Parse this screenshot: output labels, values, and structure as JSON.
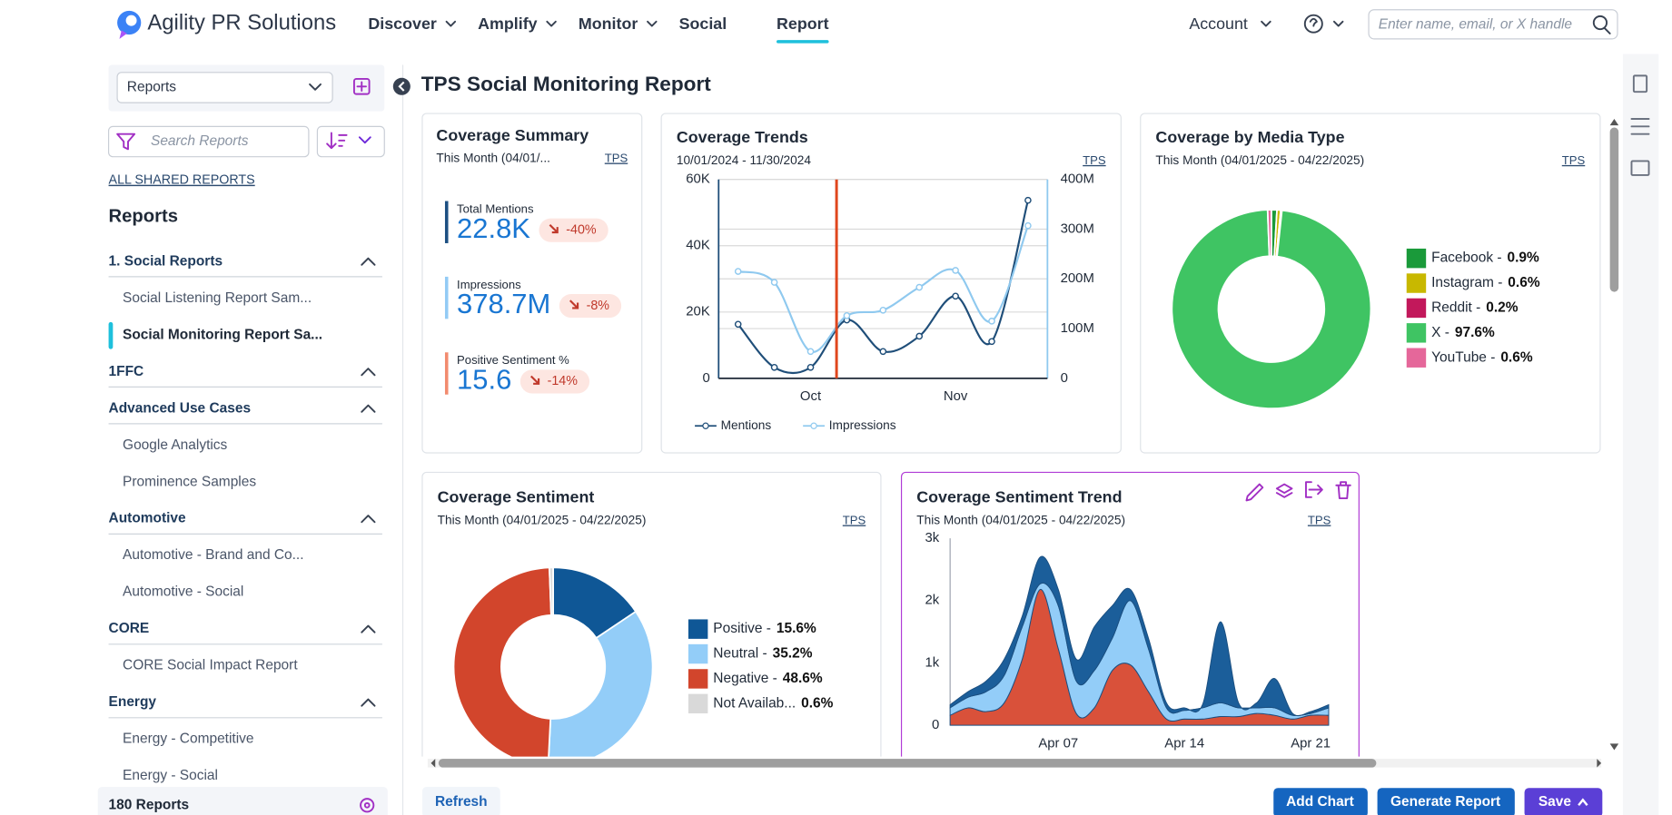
{
  "nav": {
    "brand": "Agility PR Solutions",
    "items": [
      "Discover",
      "Amplify",
      "Monitor",
      "Social",
      "Report"
    ],
    "active_item": 4,
    "account": "Account",
    "search_placeholder": "Enter name, email, or X handle"
  },
  "sidebar": {
    "dropdown": "Reports",
    "search_placeholder": "Search Reports",
    "shared_link": "ALL SHARED REPORTS",
    "heading": "Reports",
    "groups": [
      {
        "name": "1. Social Reports",
        "items": [
          "Social Listening Report Sam...",
          "Social Monitoring Report Sa..."
        ]
      },
      {
        "name": "1FFC",
        "items": []
      },
      {
        "name": "Advanced Use Cases",
        "items": [
          "Google Analytics",
          "Prominence Samples"
        ]
      },
      {
        "name": "Automotive",
        "items": [
          "Automotive - Brand and Co...",
          "Automotive - Social"
        ]
      },
      {
        "name": "CORE",
        "items": [
          "CORE Social Impact Report"
        ]
      },
      {
        "name": "Energy",
        "items": [
          "Energy - Competitive",
          "Energy - Social"
        ]
      }
    ],
    "active_item": [
      0,
      1
    ],
    "count": "180 Reports"
  },
  "report": {
    "title": "TPS Social Monitoring Report",
    "coverage_summary": {
      "title": "Coverage Summary",
      "period": "This Month (04/01/...",
      "source": "TPS",
      "metrics": [
        {
          "label": "Total Mentions",
          "value": "22.8K",
          "change": "-40%",
          "color": "#1c4f82"
        },
        {
          "label": "Impressions",
          "value": "378.7M",
          "change": "-8%",
          "color": "#93cbf5"
        },
        {
          "label": "Positive Sentiment %",
          "value": "15.6",
          "change": "-14%",
          "color": "#f28b6e"
        }
      ]
    },
    "coverage_trends": {
      "title": "Coverage Trends",
      "period": "10/01/2024 - 11/30/2024",
      "source": "TPS",
      "chart": {
        "type": "line",
        "categories": [
          null,
          null,
          "Oct",
          null,
          null,
          null,
          "Nov",
          null,
          null
        ],
        "series": [
          {
            "name": "Mentions",
            "color": "#1f4e79",
            "values": [
              16300,
              3300,
              3300,
              17600,
              8100,
              12700,
              24800,
              11100,
              53700
            ]
          },
          {
            "name": "Impressions",
            "color": "#8fc9ef",
            "axis": "y2",
            "values": [
              215000000,
              193000000,
              54000000,
              126000000,
              137000000,
              183000000,
              217000000,
              115000000,
              307000000
            ]
          }
        ],
        "ylim": [
          0,
          60000
        ],
        "yticks": [
          0,
          {
            "value": 20000,
            "label": "20K"
          },
          {
            "value": 40000,
            "label": "40K"
          },
          {
            "value": 60000,
            "label": "60K"
          }
        ],
        "y2lim": [
          0,
          400000000
        ],
        "y2ticks": [
          0,
          {
            "value": 100000000,
            "label": "100M"
          },
          {
            "value": 200000000,
            "label": "200M"
          },
          {
            "value": 300000000,
            "label": "300M"
          },
          {
            "value": 400000000,
            "label": "400M"
          }
        ],
        "grid": true
      }
    },
    "coverage_by_media_type": {
      "title": "Coverage by Media Type",
      "period": "This Month (04/01/2025 - 04/22/2025)",
      "source": "TPS",
      "chart": {
        "type": "donut",
        "categories": [
          "Facebook -",
          "Instagram -",
          "Reddit -",
          "X -",
          "YouTube -"
        ],
        "values": [
          0.9,
          0.6,
          0.2,
          97.6,
          0.6
        ],
        "value_labels": [
          "0.9%",
          "0.6%",
          "0.2%",
          "97.6%",
          "0.6%"
        ],
        "colors": [
          "#1a9a3a",
          "#c8b800",
          "#c2185b",
          "#3fc463",
          "#e5679a"
        ]
      }
    },
    "coverage_sentiment": {
      "title": "Coverage Sentiment",
      "period": "This Month (04/01/2025 - 04/22/2025)",
      "source": "TPS",
      "chart": {
        "type": "donut",
        "categories": [
          "Positive -",
          "Neutral -",
          "Negative -",
          "Not Availab..."
        ],
        "values": [
          15.6,
          35.2,
          48.6,
          0.6
        ],
        "value_labels": [
          "15.6%",
          "35.2%",
          "48.6%",
          "0.6%"
        ],
        "colors": [
          "#0f5796",
          "#93cdf8",
          "#d2452c",
          "#d9d9d9"
        ]
      }
    },
    "coverage_sentiment_trend": {
      "title": "Coverage Sentiment Trend",
      "period": "This Month (04/01/2025 - 04/22/2025)",
      "source": "TPS",
      "chart": {
        "type": "area",
        "stacked": true,
        "categories": [
          null,
          null,
          null,
          null,
          null,
          null,
          "Apr 07",
          null,
          null,
          null,
          null,
          null,
          null,
          "Apr 14",
          null,
          null,
          null,
          null,
          null,
          null,
          "Apr 21",
          null
        ],
        "series": [
          {
            "name": "Negative",
            "color": "#d9513a",
            "values": [
              160,
              280,
              220,
              360,
              1060,
              2180,
              1230,
              190,
              280,
              880,
              970,
              540,
              100,
              100,
              100,
              140,
              140,
              190,
              160,
              100,
              160,
              160
            ]
          },
          {
            "name": "Neutral",
            "color": "#93cdf8",
            "values": [
              120,
              170,
              320,
              440,
              520,
              90,
              690,
              520,
              600,
              520,
              1030,
              690,
              180,
              140,
              180,
              220,
              140,
              90,
              120,
              60,
              30,
              120
            ]
          },
          {
            "name": "Positive",
            "color": "#1b5e9a",
            "values": [
              50,
              90,
              170,
              260,
              170,
              430,
              260,
              350,
              700,
              520,
              180,
              170,
              80,
              40,
              50,
              1300,
              80,
              80,
              470,
              30,
              30,
              50
            ]
          }
        ],
        "ylim": [
          0,
          3000
        ],
        "yticks": [
          0,
          {
            "value": 1000,
            "label": "1k"
          },
          {
            "value": 2000,
            "label": "2k"
          },
          {
            "value": 3000,
            "label": "3k"
          }
        ]
      }
    }
  },
  "footer": {
    "refresh": "Refresh",
    "add_chart": "Add Chart",
    "generate_report": "Generate Report",
    "save": "Save"
  }
}
